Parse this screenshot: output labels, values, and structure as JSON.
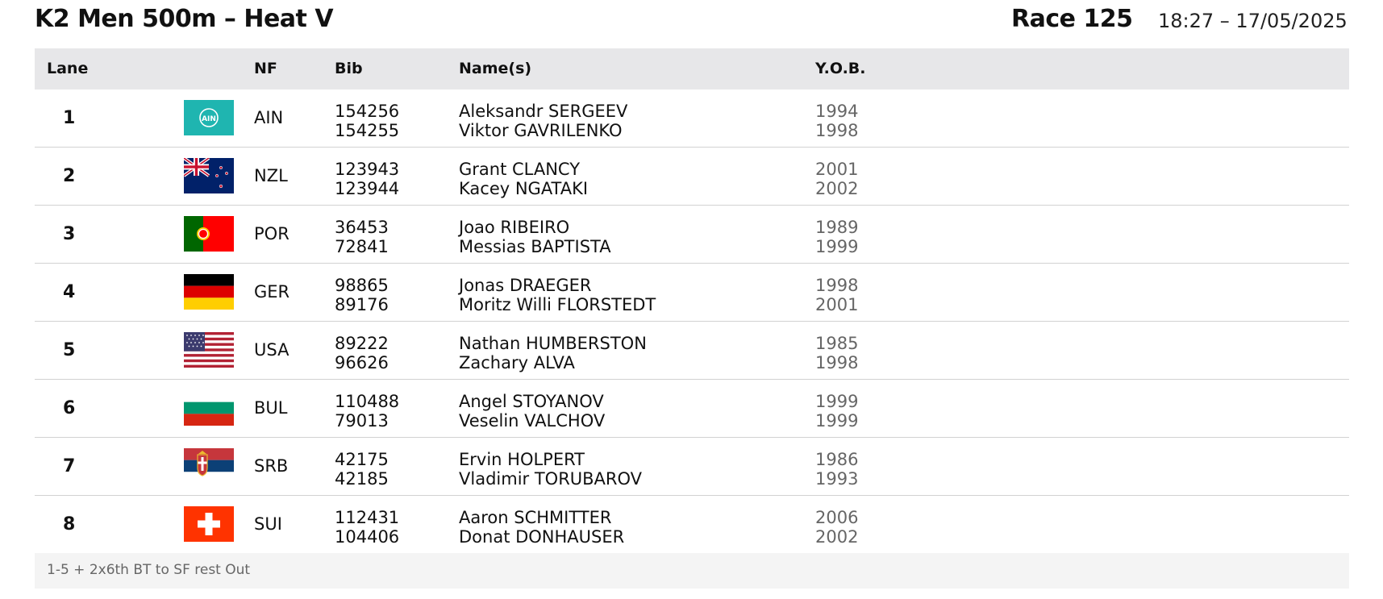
{
  "event": {
    "title": "K2 Men 500m – Heat V",
    "race": "Race 125",
    "datetime": "18:27 – 17/05/2025"
  },
  "headers": {
    "lane": "Lane",
    "nf": "NF",
    "bib": "Bib",
    "names": "Name(s)",
    "yob": "Y.O.B."
  },
  "rows": [
    {
      "lane": "1",
      "flag": "ain-flag",
      "nf": "AIN",
      "bibs": [
        "154256",
        "154255"
      ],
      "names": [
        "Aleksandr SERGEEV",
        "Viktor GAVRILENKO"
      ],
      "yob": [
        "1994",
        "1998"
      ]
    },
    {
      "lane": "2",
      "flag": "nzl-flag",
      "nf": "NZL",
      "bibs": [
        "123943",
        "123944"
      ],
      "names": [
        "Grant CLANCY",
        "Kacey NGATAKI"
      ],
      "yob": [
        "2001",
        "2002"
      ]
    },
    {
      "lane": "3",
      "flag": "por-flag",
      "nf": "POR",
      "bibs": [
        "36453",
        "72841"
      ],
      "names": [
        "Joao RIBEIRO",
        "Messias BAPTISTA"
      ],
      "yob": [
        "1989",
        "1999"
      ]
    },
    {
      "lane": "4",
      "flag": "ger-flag",
      "nf": "GER",
      "bibs": [
        "98865",
        "89176"
      ],
      "names": [
        "Jonas DRAEGER",
        "Moritz Willi FLORSTEDT"
      ],
      "yob": [
        "1998",
        "2001"
      ]
    },
    {
      "lane": "5",
      "flag": "usa-flag",
      "nf": "USA",
      "bibs": [
        "89222",
        "96626"
      ],
      "names": [
        "Nathan HUMBERSTON",
        "Zachary ALVA"
      ],
      "yob": [
        "1985",
        "1998"
      ]
    },
    {
      "lane": "6",
      "flag": "bul-flag",
      "nf": "BUL",
      "bibs": [
        "110488",
        "79013"
      ],
      "names": [
        "Angel STOYANOV",
        "Veselin VALCHOV"
      ],
      "yob": [
        "1999",
        "1999"
      ]
    },
    {
      "lane": "7",
      "flag": "srb-flag",
      "nf": "SRB",
      "bibs": [
        "42175",
        "42185"
      ],
      "names": [
        "Ervin HOLPERT",
        "Vladimir TORUBAROV"
      ],
      "yob": [
        "1986",
        "1993"
      ]
    },
    {
      "lane": "8",
      "flag": "sui-flag",
      "nf": "SUI",
      "bibs": [
        "112431",
        "104406"
      ],
      "names": [
        "Aaron SCHMITTER",
        "Donat DONHAUSER"
      ],
      "yob": [
        "2006",
        "2002"
      ]
    }
  ],
  "footer": {
    "note": "1-5 + 2x6th BT to SF rest Out"
  }
}
